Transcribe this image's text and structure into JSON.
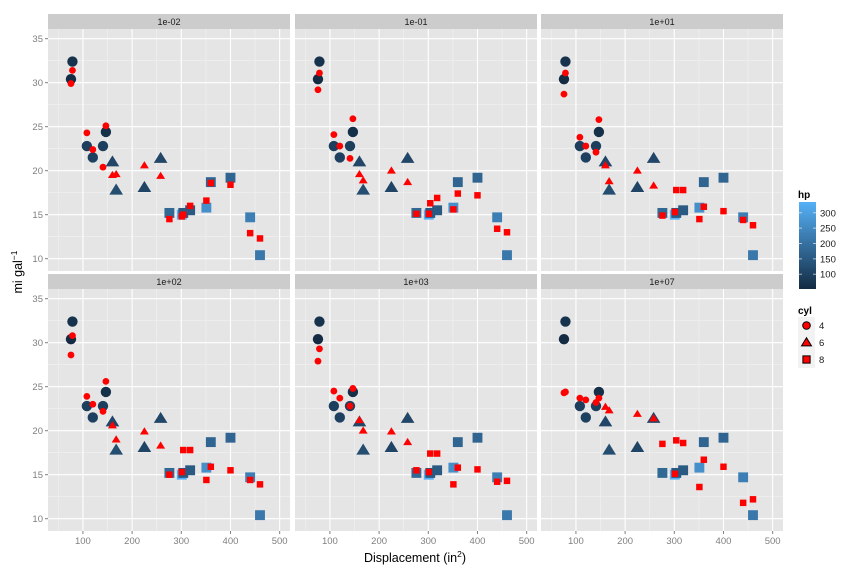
{
  "chart_data": {
    "type": "scatter",
    "facets": [
      "1e-02",
      "1e-01",
      "1e+01",
      "1e+02",
      "1e+03",
      "1e+07"
    ],
    "xlabel": "Displacement (in",
    "xlabel_sup": "2",
    "xlabel_end": ")",
    "ylabel": "mi gal",
    "ylabel_sup": "−1",
    "xlim": [
      29,
      521
    ],
    "ylim": [
      8.6,
      36.1
    ],
    "x_ticks": [
      100,
      200,
      300,
      400,
      500
    ],
    "y_ticks": [
      10,
      15,
      20,
      25,
      30,
      35
    ],
    "grid": true,
    "observed": {
      "disp": [
        78.7,
        75.7,
        108,
        120.1,
        146.7,
        140.8,
        160,
        167.6,
        225,
        258,
        275.8,
        301,
        304,
        318,
        351,
        360,
        400,
        440,
        460
      ],
      "mpg": [
        32.4,
        30.4,
        22.8,
        21.5,
        24.4,
        22.8,
        21.0,
        17.8,
        18.1,
        21.4,
        15.2,
        15.0,
        15.2,
        15.5,
        15.8,
        18.7,
        19.2,
        14.7,
        10.4
      ],
      "hp": [
        66,
        52,
        93,
        97,
        62,
        95,
        110,
        123,
        105,
        110,
        180,
        335,
        150,
        150,
        264,
        175,
        175,
        230,
        215
      ],
      "cyl": [
        4,
        4,
        4,
        4,
        4,
        4,
        6,
        6,
        6,
        6,
        8,
        8,
        8,
        8,
        8,
        8,
        8,
        8,
        8
      ]
    },
    "predicted": {
      "1e-02": [
        31.4,
        29.9,
        24.3,
        22.4,
        25.1,
        20.4,
        19.5,
        19.6,
        20.6,
        19.4,
        14.5,
        14.8,
        15.0,
        16.0,
        16.6,
        18.6,
        18.4,
        12.9,
        12.3
      ],
      "1e-01": [
        31.1,
        29.2,
        24.1,
        22.8,
        25.9,
        21.4,
        19.6,
        18.9,
        20.0,
        18.7,
        15.1,
        15.1,
        16.3,
        16.9,
        15.6,
        17.4,
        17.2,
        13.4,
        13.0
      ],
      "1e+01": [
        31.1,
        28.7,
        23.8,
        22.8,
        25.8,
        22.1,
        20.6,
        18.8,
        20.0,
        18.3,
        14.9,
        15.3,
        17.8,
        17.8,
        14.5,
        15.9,
        15.4,
        14.4,
        13.8
      ],
      "1e+02": [
        30.8,
        28.6,
        23.9,
        23.0,
        25.6,
        22.2,
        20.6,
        19.0,
        19.9,
        18.3,
        15.0,
        15.3,
        17.8,
        17.8,
        14.4,
        15.9,
        15.5,
        14.4,
        13.9
      ],
      "1e+03": [
        29.3,
        27.9,
        24.5,
        23.7,
        24.8,
        22.8,
        21.2,
        20.0,
        19.9,
        18.7,
        15.5,
        15.3,
        17.4,
        17.4,
        13.9,
        15.8,
        15.6,
        14.2,
        14.3
      ],
      "1e+07": [
        24.4,
        24.3,
        23.7,
        23.5,
        23.7,
        23.2,
        22.7,
        22.3,
        21.9,
        21.4,
        18.5,
        15.1,
        18.9,
        18.6,
        13.6,
        16.7,
        15.9,
        11.8,
        12.2
      ]
    },
    "predicted_color": "#FF0000",
    "legend": {
      "position": "right",
      "hp_title": "hp",
      "hp_ticks": [
        100,
        150,
        200,
        250,
        300
      ],
      "hp_range": [
        52,
        335
      ],
      "hp_colors": [
        "#132B43",
        "#56B1F7"
      ],
      "cyl_title": "cyl",
      "cyl_levels": [
        "4",
        "6",
        "8"
      ],
      "cyl_shapes": [
        "circle",
        "triangle",
        "square"
      ]
    }
  }
}
